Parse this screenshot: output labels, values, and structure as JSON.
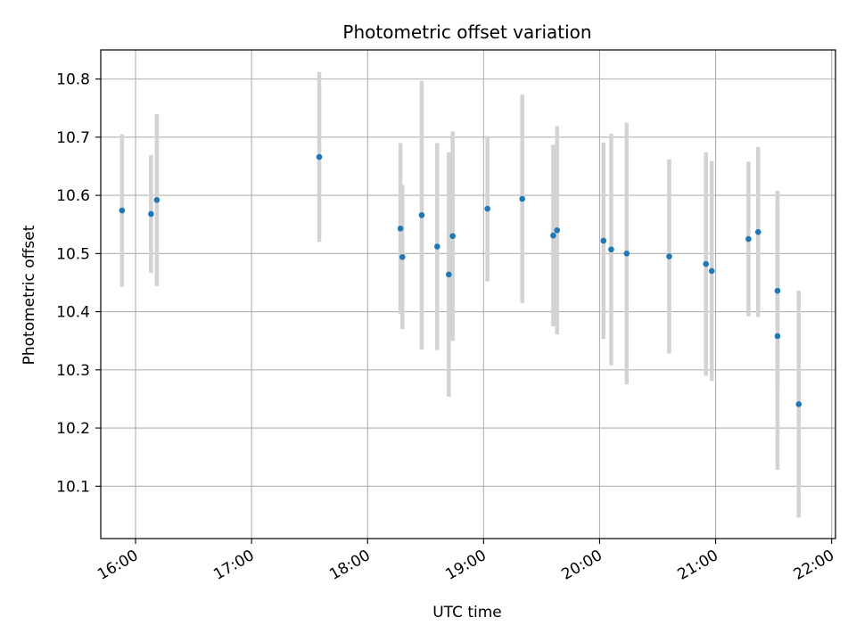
{
  "chart_data": {
    "type": "scatter",
    "title": "Photometric offset variation",
    "xlabel": "UTC time",
    "ylabel": "Photometric offset",
    "x_tick_labels": [
      "16:00",
      "17:00",
      "18:00",
      "19:00",
      "20:00",
      "21:00",
      "22:00"
    ],
    "y_tick_labels": [
      "10.1",
      "10.2",
      "10.3",
      "10.4",
      "10.5",
      "10.6",
      "10.7",
      "10.8"
    ],
    "ylim": [
      10.01,
      10.85
    ],
    "xlim": [
      "15:42",
      "22:02"
    ],
    "grid": true,
    "colors": {
      "point": "#1f77b4",
      "errorbar": "#d3d3d3",
      "grid": "#b0b0b0"
    },
    "points": [
      {
        "time": "15:53",
        "offset": 10.574,
        "err": 0.131
      },
      {
        "time": "16:08",
        "offset": 10.568,
        "err": 0.101
      },
      {
        "time": "16:11",
        "offset": 10.592,
        "err": 0.148
      },
      {
        "time": "17:35",
        "offset": 10.666,
        "err": 0.146
      },
      {
        "time": "18:17",
        "offset": 10.543,
        "err": 0.147
      },
      {
        "time": "18:18",
        "offset": 10.494,
        "err": 0.124
      },
      {
        "time": "18:28",
        "offset": 10.566,
        "err": 0.231
      },
      {
        "time": "18:36",
        "offset": 10.512,
        "err": 0.178
      },
      {
        "time": "18:42",
        "offset": 10.464,
        "err": 0.21
      },
      {
        "time": "18:44",
        "offset": 10.53,
        "err": 0.18
      },
      {
        "time": "19:02",
        "offset": 10.577,
        "err": 0.125
      },
      {
        "time": "19:20",
        "offset": 10.594,
        "err": 0.179
      },
      {
        "time": "19:36",
        "offset": 10.531,
        "err": 0.156
      },
      {
        "time": "19:38",
        "offset": 10.54,
        "err": 0.179
      },
      {
        "time": "20:02",
        "offset": 10.522,
        "err": 0.169
      },
      {
        "time": "20:06",
        "offset": 10.507,
        "err": 0.199
      },
      {
        "time": "20:14",
        "offset": 10.5,
        "err": 0.225
      },
      {
        "time": "20:36",
        "offset": 10.495,
        "err": 0.167
      },
      {
        "time": "20:55",
        "offset": 10.482,
        "err": 0.192
      },
      {
        "time": "20:58",
        "offset": 10.47,
        "err": 0.189
      },
      {
        "time": "21:17",
        "offset": 10.525,
        "err": 0.133
      },
      {
        "time": "21:22",
        "offset": 10.537,
        "err": 0.146
      },
      {
        "time": "21:32",
        "offset": 10.436,
        "err": 0.172
      },
      {
        "time": "21:32",
        "offset": 10.358,
        "err": 0.23
      },
      {
        "time": "21:43",
        "offset": 10.241,
        "err": 0.195
      }
    ]
  }
}
